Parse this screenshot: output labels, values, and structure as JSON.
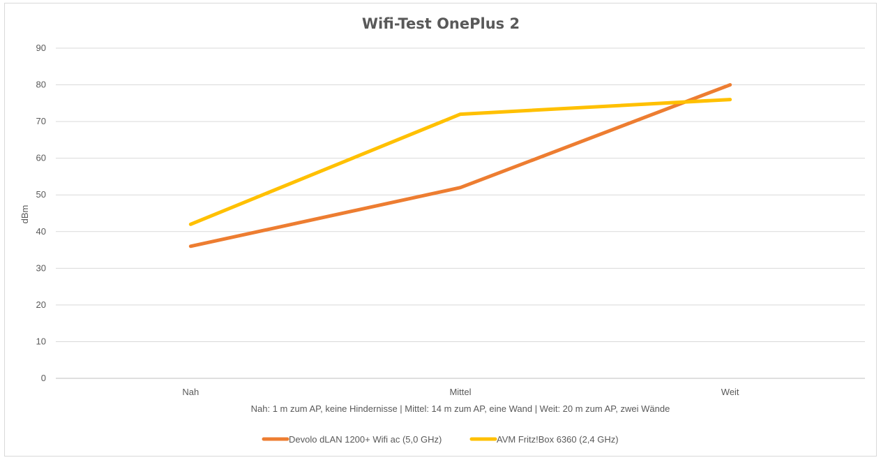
{
  "chart_data": {
    "type": "line",
    "title": "Wifi-Test OnePlus 2",
    "xlabel": "Nah: 1 m zum AP, keine Hindernisse | Mittel: 14 m zum AP, eine Wand | Weit: 20 m zum AP, zwei Wände",
    "ylabel": "dBm",
    "categories": [
      "Nah",
      "Mittel",
      "Weit"
    ],
    "ylim": [
      0,
      90
    ],
    "yticks": [
      0,
      10,
      20,
      30,
      40,
      50,
      60,
      70,
      80,
      90
    ],
    "grid": true,
    "legend_position": "bottom",
    "series": [
      {
        "name": "Devolo dLAN 1200+ Wifi ac (5,0 GHz)",
        "values": [
          36,
          52,
          80
        ],
        "color": "#ed7d31"
      },
      {
        "name": "AVM Fritz!Box 6360 (2,4 GHz)",
        "values": [
          42,
          72,
          76
        ],
        "color": "#ffc000"
      }
    ]
  }
}
